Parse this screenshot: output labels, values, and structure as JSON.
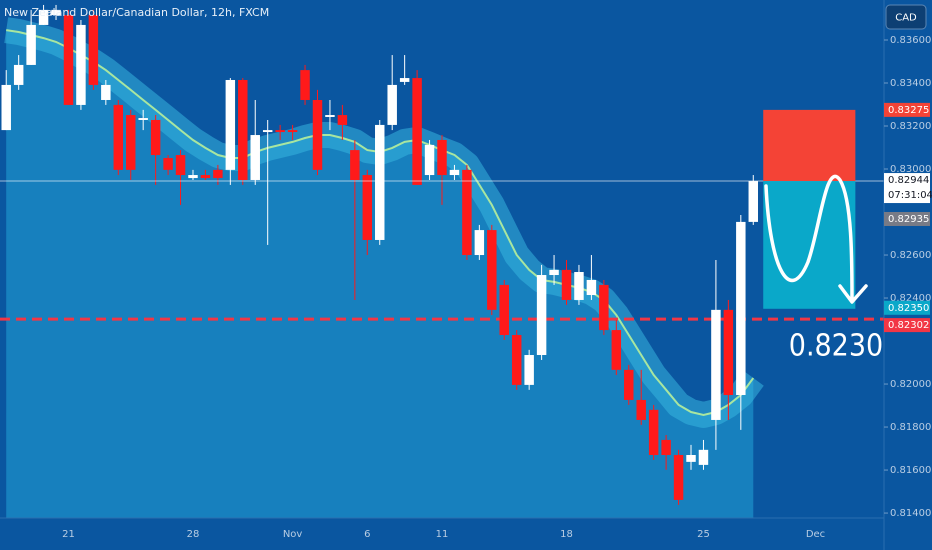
{
  "chart_data": {
    "type": "candlestick",
    "title": "New Zealand Dollar/Canadian Dollar, 12h, FXCM",
    "currency": "CAD",
    "categories": [
      null,
      null,
      null,
      null,
      null,
      "21",
      null,
      null,
      null,
      null,
      null,
      null,
      null,
      null,
      null,
      "28",
      null,
      null,
      null,
      null,
      null,
      null,
      null,
      "Nov",
      null,
      null,
      null,
      null,
      null,
      "6",
      null,
      null,
      null,
      null,
      null,
      "11",
      null,
      null,
      null,
      null,
      null,
      null,
      null,
      null,
      null,
      "18",
      null,
      null,
      null,
      null,
      null,
      null,
      null,
      null,
      null,
      null,
      "25",
      null,
      null,
      null,
      null,
      null,
      null,
      null,
      null,
      "Dec",
      null,
      null,
      null,
      null,
      null
    ],
    "open": [
      0.83181,
      0.83391,
      0.83484,
      0.8367,
      0.83716,
      0.83716,
      0.83298,
      0.83716,
      0.83321,
      0.83298,
      0.83251,
      0.83228,
      0.83228,
      0.83051,
      0.83065,
      0.82958,
      0.82972,
      0.82996,
      0.82996,
      0.83414,
      0.82949,
      0.83172,
      0.83181,
      0.83181,
      0.8346,
      0.83321,
      0.83242,
      0.83251,
      0.83088,
      0.82972,
      0.8267,
      0.83205,
      0.83405,
      0.83423,
      0.82972,
      0.83135,
      0.82972,
      0.82996,
      0.826,
      0.82716,
      0.82461,
      0.82228,
      0.81996,
      0.82135,
      0.82507,
      0.82531,
      0.82391,
      0.82414,
      0.82461,
      0.82251,
      0.82066,
      0.81926,
      0.8188,
      0.8174,
      0.8167,
      0.81638,
      0.81624,
      0.81833,
      0.82345,
      0.81949,
      0.82754,
      null,
      null,
      null,
      null,
      null,
      null,
      null,
      null,
      null,
      null
    ],
    "high": [
      0.8346,
      0.8353,
      0.8374,
      0.83763,
      0.83763,
      0.8374,
      0.83693,
      0.8374,
      0.83414,
      0.83321,
      0.83275,
      0.83275,
      0.83251,
      0.83065,
      0.83088,
      0.82996,
      0.82996,
      0.83019,
      0.83423,
      0.83423,
      0.83321,
      0.83228,
      0.83205,
      0.83205,
      0.83484,
      0.83368,
      0.83321,
      0.83298,
      0.83135,
      0.82996,
      0.83228,
      0.8353,
      0.8353,
      0.8346,
      0.83135,
      0.83158,
      0.83019,
      0.83019,
      0.8274,
      0.8274,
      0.82484,
      0.82251,
      0.82159,
      0.82554,
      0.826,
      0.82577,
      0.82554,
      0.826,
      0.82484,
      0.82298,
      0.82089,
      0.82066,
      0.81903,
      0.81763,
      0.81694,
      0.81717,
      0.8174,
      0.82577,
      0.82391,
      0.82786,
      0.82972,
      null,
      null,
      null,
      null,
      null,
      null,
      null,
      null,
      null,
      null
    ],
    "low": [
      0.83181,
      0.83368,
      0.83484,
      0.8367,
      0.83693,
      0.83298,
      0.83275,
      0.83368,
      0.83298,
      0.82972,
      0.82949,
      0.83181,
      0.82926,
      0.82972,
      0.82833,
      0.82949,
      0.82949,
      0.82926,
      0.82926,
      0.82926,
      0.82926,
      0.82647,
      0.83135,
      0.83135,
      0.83298,
      0.82972,
      0.83181,
      0.83135,
      0.82391,
      0.826,
      0.82647,
      0.83181,
      0.83391,
      0.82926,
      0.82949,
      0.82833,
      0.82949,
      0.82577,
      0.82577,
      0.82321,
      0.82205,
      0.81973,
      0.81973,
      0.82112,
      0.82461,
      0.82368,
      0.82368,
      0.82391,
      0.82228,
      0.82042,
      0.81903,
      0.8181,
      0.81647,
      0.81601,
      0.81438,
      0.81601,
      0.81601,
      0.81694,
      0.81833,
      0.81787,
      0.8274,
      null,
      null,
      null,
      null,
      null,
      null,
      null,
      null,
      null,
      null
    ],
    "close": [
      0.83391,
      0.83484,
      0.8367,
      0.8374,
      0.8374,
      0.83298,
      0.8367,
      0.83391,
      0.83391,
      0.82996,
      0.82996,
      0.83237,
      0.83065,
      0.82996,
      0.82972,
      0.82972,
      0.82958,
      0.82958,
      0.83414,
      0.82949,
      0.83158,
      0.83181,
      0.83172,
      0.83172,
      0.83321,
      0.82996,
      0.83251,
      0.83205,
      0.82949,
      0.8267,
      0.83205,
      0.83391,
      0.83423,
      0.82926,
      0.83112,
      0.82972,
      0.82996,
      0.826,
      0.82716,
      0.82345,
      0.82228,
      0.81996,
      0.82135,
      0.82507,
      0.82531,
      0.82391,
      0.82521,
      0.82484,
      0.82251,
      0.82066,
      0.81926,
      0.81833,
      0.8167,
      0.8167,
      0.81461,
      0.8167,
      0.81694,
      0.82345,
      0.81949,
      0.82754,
      0.82944,
      null,
      null,
      null,
      null,
      null,
      null,
      null,
      null,
      null,
      null
    ],
    "up_color": "#ffffff",
    "down_color": "#ff1a1a",
    "series": [
      {
        "color": "#a8e6a0",
        "values": [
          0.83646,
          0.83637,
          0.83623,
          0.83609,
          0.83591,
          0.83563,
          0.8353,
          0.83498,
          0.8346,
          0.83414,
          0.83368,
          0.83321,
          0.83275,
          0.83228,
          0.83181,
          0.83135,
          0.83098,
          0.83065,
          0.83051,
          0.83051,
          0.83079,
          0.83098,
          0.83112,
          0.83126,
          0.83144,
          0.83158,
          0.83158,
          0.83144,
          0.83126,
          0.83088,
          0.83079,
          0.83098,
          0.83126,
          0.83135,
          0.83112,
          0.83088,
          0.83065,
          0.83019,
          0.82926,
          0.82833,
          0.82716,
          0.826,
          0.82531,
          0.82484,
          0.82475,
          0.82461,
          0.82447,
          0.82428,
          0.82391,
          0.82321,
          0.82228,
          0.82135,
          0.82042,
          0.81973,
          0.81903,
          0.8187,
          0.81856,
          0.8187,
          0.81903,
          0.81949,
          0.82028,
          null,
          null,
          null,
          null,
          null,
          null,
          null,
          null,
          null,
          null
        ]
      }
    ],
    "ylim": [
      0.81377,
      0.83786
    ],
    "yticks": [
      {
        "value": 0.814,
        "label": "0.81400"
      },
      {
        "value": 0.816,
        "label": "0.81600"
      },
      {
        "value": 0.818,
        "label": "0.81800"
      },
      {
        "value": 0.82,
        "label": "0.82000"
      },
      {
        "value": 0.824,
        "label": "0.82400"
      },
      {
        "value": 0.826,
        "label": "0.82600"
      },
      {
        "value": 0.83,
        "label": "0.83000"
      },
      {
        "value": 0.832,
        "label": "0.83200"
      },
      {
        "value": 0.834,
        "label": "0.83400"
      },
      {
        "value": 0.836,
        "label": "0.83600"
      }
    ],
    "position": {
      "stop": 0.83275,
      "entry": 0.82944,
      "target": {
        "value": 0.8235,
        "label": "0.82350"
      },
      "stop_color": "#f44336",
      "target_color": "#0aa8c9"
    },
    "countdown": "07:31:04",
    "last_price": 0.82935,
    "level": {
      "value": 0.82302,
      "annotation": "0.8230",
      "color": "#f23645"
    }
  }
}
